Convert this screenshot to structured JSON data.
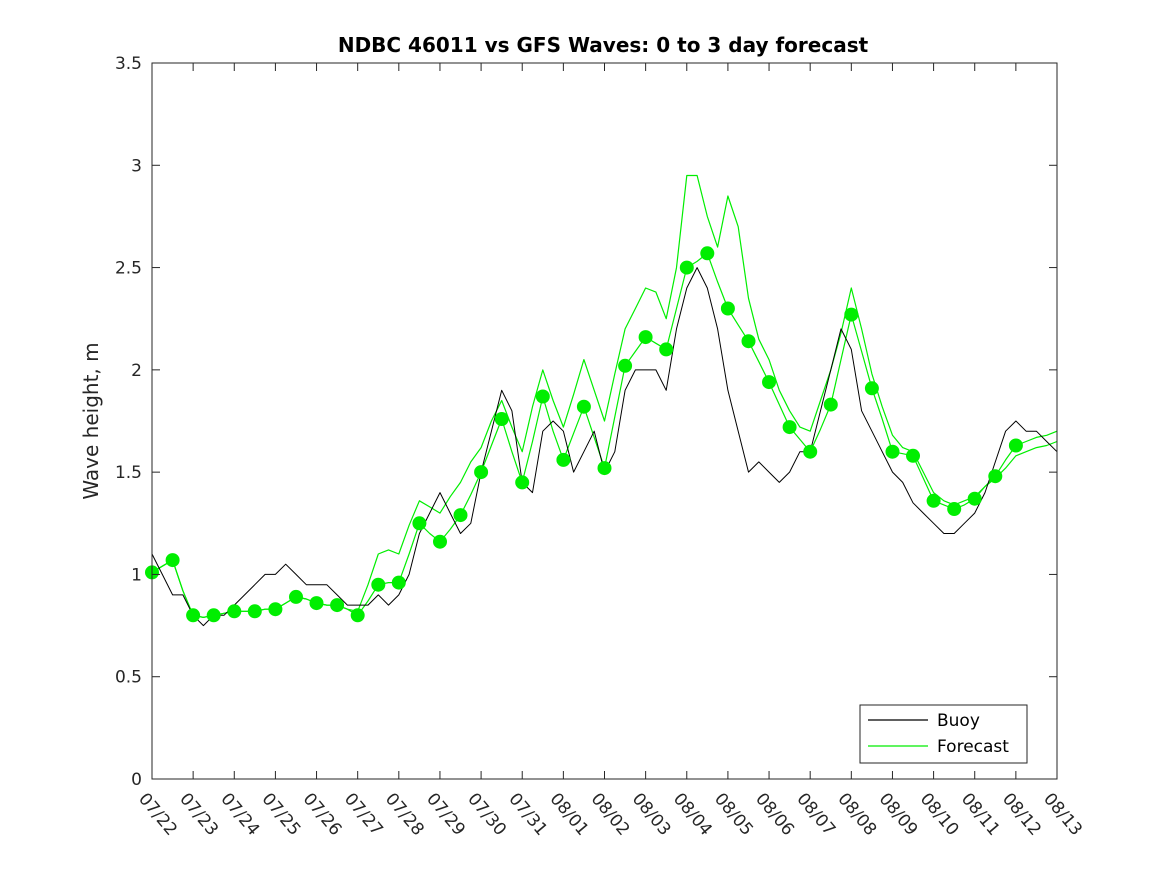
{
  "chart_data": {
    "type": "line",
    "title": "NDBC 46011 vs GFS Waves: 0 to 3 day forecast",
    "xlabel": "",
    "ylabel": "Wave height, m",
    "ylim": [
      0,
      3.5
    ],
    "xlim_days": [
      0,
      22
    ],
    "yticks": [
      "0",
      "0.5",
      "1",
      "1.5",
      "2",
      "2.5",
      "3",
      "3.5"
    ],
    "xtick_labels": [
      "07/22",
      "07/23",
      "07/24",
      "07/25",
      "07/26",
      "07/27",
      "07/28",
      "07/29",
      "07/30",
      "07/31",
      "08/01",
      "08/02",
      "08/03",
      "08/04",
      "08/05",
      "08/06",
      "08/07",
      "08/08",
      "08/09",
      "08/10",
      "08/11",
      "08/12",
      "08/13"
    ],
    "grid": false,
    "legend_position": "bottom-right",
    "legend": [
      "Buoy",
      "Forecast"
    ],
    "colors": {
      "buoy": "#000000",
      "forecast": "#00ee00",
      "axis": "#262626"
    },
    "buoy": {
      "name": "Buoy",
      "x": [
        0.0,
        0.25,
        0.5,
        0.75,
        1.0,
        1.25,
        1.5,
        1.75,
        2.0,
        2.25,
        2.5,
        2.75,
        3.0,
        3.25,
        3.5,
        3.75,
        4.0,
        4.25,
        4.5,
        4.75,
        5.0,
        5.25,
        5.5,
        5.75,
        6.0,
        6.25,
        6.5,
        6.75,
        7.0,
        7.25,
        7.5,
        7.75,
        8.0,
        8.25,
        8.5,
        8.75,
        9.0,
        9.25,
        9.5,
        9.75,
        10.0,
        10.25,
        10.5,
        10.75,
        11.0,
        11.25,
        11.5,
        11.75,
        12.0,
        12.25,
        12.5,
        12.75,
        13.0,
        13.25,
        13.5,
        13.75,
        14.0,
        14.25,
        14.5,
        14.75,
        15.0,
        15.25,
        15.5,
        15.75,
        16.0,
        16.25,
        16.5,
        16.75,
        17.0,
        17.25,
        17.5,
        17.75,
        18.0,
        18.25,
        18.5,
        18.75,
        19.0,
        19.25,
        19.5,
        19.75,
        20.0,
        20.25,
        20.5,
        20.75,
        21.0,
        21.25,
        21.5,
        21.75,
        22.0
      ],
      "values": [
        1.1,
        1.0,
        0.9,
        0.9,
        0.8,
        0.75,
        0.8,
        0.8,
        0.85,
        0.9,
        0.95,
        1.0,
        1.0,
        1.05,
        1.0,
        0.95,
        0.95,
        0.95,
        0.9,
        0.85,
        0.85,
        0.85,
        0.9,
        0.85,
        0.9,
        1.0,
        1.2,
        1.3,
        1.4,
        1.3,
        1.2,
        1.25,
        1.5,
        1.7,
        1.9,
        1.8,
        1.45,
        1.4,
        1.7,
        1.75,
        1.7,
        1.5,
        1.6,
        1.7,
        1.5,
        1.6,
        1.9,
        2.0,
        2.0,
        2.0,
        1.9,
        2.2,
        2.4,
        2.5,
        2.4,
        2.2,
        1.9,
        1.7,
        1.5,
        1.55,
        1.5,
        1.45,
        1.5,
        1.6,
        1.6,
        1.8,
        2.0,
        2.2,
        2.1,
        1.8,
        1.7,
        1.6,
        1.5,
        1.45,
        1.35,
        1.3,
        1.25,
        1.2,
        1.2,
        1.25,
        1.3,
        1.4,
        1.55,
        1.7,
        1.75,
        1.7,
        1.7,
        1.65,
        1.6
      ]
    },
    "forecast_runs": [
      {
        "name": "Forecast",
        "x": [
          0.0,
          0.25,
          0.5,
          0.75,
          1.0,
          1.25,
          1.5,
          1.75,
          2.0,
          2.25,
          2.5,
          2.75,
          3.0,
          3.25,
          3.5,
          3.75,
          4.0,
          4.25,
          4.5,
          4.75,
          5.0,
          5.25,
          5.5,
          5.75,
          6.0,
          6.25,
          6.5,
          6.75,
          7.0,
          7.25,
          7.5,
          7.75,
          8.0,
          8.25,
          8.5,
          8.75,
          9.0,
          9.25,
          9.5,
          9.75,
          10.0,
          10.25,
          10.5,
          10.75,
          11.0,
          11.25,
          11.5,
          11.75,
          12.0,
          12.25,
          12.5,
          12.75,
          13.0,
          13.25,
          13.5,
          13.75,
          14.0,
          14.25,
          14.5,
          14.75,
          15.0,
          15.25,
          15.5,
          15.75,
          16.0,
          16.25,
          16.5,
          16.75,
          17.0,
          17.25,
          17.5,
          17.75,
          18.0,
          18.25,
          18.5,
          18.75,
          19.0,
          19.25,
          19.5,
          19.75,
          20.0,
          20.25,
          20.5,
          20.75,
          21.0,
          21.25,
          21.5,
          21.75,
          22.0
        ],
        "values": [
          1.01,
          1.04,
          1.07,
          0.92,
          0.8,
          0.79,
          0.8,
          0.81,
          0.82,
          0.82,
          0.82,
          0.83,
          0.83,
          0.86,
          0.89,
          0.88,
          0.86,
          0.85,
          0.85,
          0.83,
          0.8,
          0.87,
          0.95,
          0.96,
          0.96,
          1.1,
          1.25,
          1.2,
          1.16,
          1.22,
          1.29,
          1.39,
          1.5,
          1.63,
          1.76,
          1.6,
          1.45,
          1.65,
          1.87,
          1.7,
          1.56,
          1.69,
          1.82,
          1.67,
          1.52,
          1.77,
          2.02,
          2.09,
          2.16,
          2.13,
          2.1,
          2.3,
          2.5,
          2.53,
          2.57,
          2.43,
          2.3,
          2.22,
          2.14,
          2.04,
          1.94,
          1.83,
          1.72,
          1.66,
          1.6,
          1.71,
          1.83,
          2.05,
          2.27,
          2.09,
          1.91,
          1.76,
          1.6,
          1.59,
          1.58,
          1.47,
          1.36,
          1.34,
          1.32,
          1.34,
          1.37,
          1.43,
          1.48,
          1.56,
          1.63,
          1.65,
          1.67,
          1.68,
          1.7
        ]
      },
      {
        "name": "Forecast",
        "x": [
          0.0,
          0.25,
          0.5,
          0.75,
          1.0,
          1.25,
          1.5,
          1.75,
          2.0,
          2.25,
          2.5,
          2.75,
          3.0,
          3.25,
          3.5,
          3.75,
          4.0,
          4.25,
          4.5,
          4.75,
          5.0,
          5.25,
          5.5,
          5.75,
          6.0,
          6.25,
          6.5,
          6.75,
          7.0,
          7.25,
          7.5,
          7.75,
          8.0,
          8.25,
          8.5,
          8.75,
          9.0,
          9.25,
          9.5,
          9.75,
          10.0,
          10.25,
          10.5,
          10.75,
          11.0,
          11.25,
          11.5,
          11.75,
          12.0,
          12.25,
          12.5,
          12.75,
          13.0,
          13.25,
          13.5,
          13.75,
          14.0,
          14.25,
          14.5,
          14.75,
          15.0,
          15.25,
          15.5,
          15.75,
          16.0,
          16.25,
          16.5,
          16.75,
          17.0,
          17.25,
          17.5,
          17.75,
          18.0,
          18.25,
          18.5,
          18.75,
          19.0,
          19.25,
          19.5,
          19.75,
          20.0,
          20.25,
          20.5,
          20.75,
          21.0,
          21.25,
          21.5,
          21.75,
          22.0
        ],
        "values": [
          1.01,
          1.04,
          1.07,
          0.92,
          0.8,
          0.79,
          0.8,
          0.81,
          0.82,
          0.82,
          0.82,
          0.83,
          0.83,
          0.86,
          0.89,
          0.88,
          0.86,
          0.85,
          0.85,
          0.83,
          0.82,
          0.95,
          1.1,
          1.12,
          1.1,
          1.24,
          1.36,
          1.33,
          1.3,
          1.38,
          1.45,
          1.55,
          1.62,
          1.75,
          1.85,
          1.72,
          1.6,
          1.82,
          2.0,
          1.85,
          1.72,
          1.88,
          2.05,
          1.9,
          1.75,
          1.98,
          2.2,
          2.3,
          2.4,
          2.38,
          2.25,
          2.5,
          2.95,
          2.95,
          2.75,
          2.6,
          2.85,
          2.7,
          2.35,
          2.15,
          2.05,
          1.9,
          1.8,
          1.72,
          1.7,
          1.85,
          2.0,
          2.18,
          2.4,
          2.2,
          1.98,
          1.82,
          1.68,
          1.62,
          1.6,
          1.5,
          1.4,
          1.36,
          1.34,
          1.36,
          1.38,
          1.43,
          1.47,
          1.52,
          1.58,
          1.6,
          1.62,
          1.63,
          1.65
        ]
      }
    ],
    "forecast_markers": {
      "x": [
        0.0,
        0.5,
        1.0,
        1.5,
        2.0,
        2.5,
        3.0,
        3.5,
        4.0,
        4.5,
        5.0,
        5.5,
        6.0,
        6.5,
        7.0,
        7.5,
        8.0,
        8.5,
        9.0,
        9.5,
        10.0,
        10.5,
        11.0,
        11.5,
        12.0,
        12.5,
        13.0,
        13.5,
        14.0,
        14.5,
        15.0,
        15.5,
        16.0,
        16.5,
        17.0,
        17.5,
        18.0,
        18.5,
        19.0,
        19.5,
        20.0,
        20.5,
        21.0
      ],
      "values": [
        1.01,
        1.07,
        0.8,
        0.8,
        0.82,
        0.82,
        0.83,
        0.89,
        0.86,
        0.85,
        0.8,
        0.95,
        0.96,
        1.25,
        1.16,
        1.29,
        1.5,
        1.76,
        1.45,
        1.87,
        1.56,
        1.82,
        1.52,
        2.02,
        2.16,
        2.1,
        2.5,
        2.57,
        2.3,
        2.14,
        1.94,
        1.72,
        1.6,
        1.83,
        2.27,
        1.91,
        1.6,
        1.58,
        1.36,
        1.32,
        1.37,
        1.48,
        1.63
      ]
    }
  }
}
